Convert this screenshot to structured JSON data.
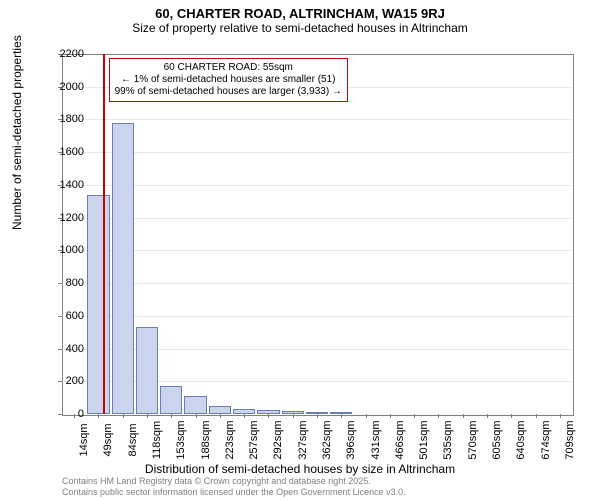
{
  "title": "60, CHARTER ROAD, ALTRINCHAM, WA15 9RJ",
  "subtitle": "Size of property relative to semi-detached houses in Altrincham",
  "ylabel": "Number of semi-detached properties",
  "xlabel": "Distribution of semi-detached houses by size in Altrincham",
  "chart": {
    "type": "histogram",
    "ymin": 0,
    "ymax": 2200,
    "ytick_step": 200,
    "bar_color": "#cad4ec",
    "bar_border": "#6a7fb0",
    "grid_color": "#e8e8e8",
    "axis_color": "#808080",
    "background_color": "#ffffff",
    "tick_fontsize": 11,
    "label_fontsize": 12,
    "title_fontsize": 13,
    "xticks": [
      "14sqm",
      "49sqm",
      "84sqm",
      "118sqm",
      "153sqm",
      "188sqm",
      "223sqm",
      "257sqm",
      "292sqm",
      "327sqm",
      "362sqm",
      "396sqm",
      "431sqm",
      "466sqm",
      "501sqm",
      "535sqm",
      "570sqm",
      "605sqm",
      "640sqm",
      "674sqm",
      "709sqm"
    ],
    "values": [
      0,
      1340,
      1780,
      530,
      170,
      110,
      50,
      30,
      25,
      20,
      10,
      5,
      0,
      0,
      0,
      0,
      0,
      0,
      0,
      0
    ]
  },
  "reference": {
    "value": "55sqm",
    "line_color": "#cc0000",
    "box_border": "#cc0000",
    "box_bg": "#ffffff",
    "title_line": "60 CHARTER ROAD: 55sqm",
    "line2": "← 1% of semi-detached houses are smaller (51)",
    "line3": "99% of semi-detached houses are larger (3,933) →"
  },
  "footer": {
    "line1": "Contains HM Land Registry data © Crown copyright and database right 2025.",
    "line2": "Contains public sector information licensed under the Open Government Licence v3.0.",
    "color": "#808080"
  }
}
